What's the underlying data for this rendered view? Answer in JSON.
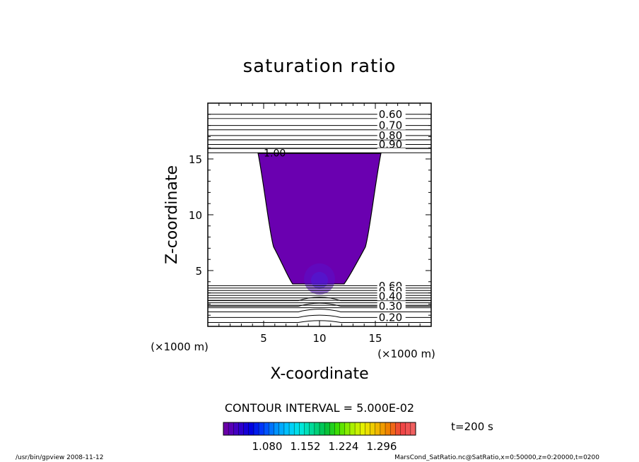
{
  "chart_data": {
    "type": "contour",
    "title": "saturation ratio",
    "xlabel": "X-coordinate",
    "ylabel": "Z-coordinate",
    "x_unit": "(×1000 m)",
    "z_unit": "(×1000 m)",
    "xlim": [
      0,
      20
    ],
    "ylim": [
      0,
      20
    ],
    "x_ticks": [
      5,
      10,
      15
    ],
    "y_ticks": [
      5,
      10,
      15
    ],
    "contour_interval_text": "CONTOUR INTERVAL = 5.000E-02",
    "time_text": "t=200 s",
    "upper_contours": [
      {
        "label": "0.60",
        "z": 19.0
      },
      {
        "label": "0.70",
        "z": 18.0
      },
      {
        "label": "0.80",
        "z": 17.1
      },
      {
        "label": "0.90",
        "z": 16.3
      },
      {
        "label": "1.00",
        "z": 15.55
      }
    ],
    "lower_contours": [
      {
        "label": "0.60",
        "z": 3.6
      },
      {
        "label": "0.50",
        "z": 3.15
      },
      {
        "label": "0.40",
        "z": 2.7
      },
      {
        "label": "0.30",
        "z": 1.8
      },
      {
        "label": "0.20",
        "z": 0.8
      }
    ],
    "supersaturated_region": {
      "level": "1.00",
      "top_z": 15.5,
      "bottom_z": 3.8,
      "top_x": [
        4.5,
        15.5
      ],
      "bottom_x": [
        7.6,
        12.2
      ],
      "max_center": {
        "x": 10,
        "z": 4.5
      }
    },
    "colorbar": {
      "tick_labels": [
        "1.080",
        "1.152",
        "1.224",
        "1.296"
      ],
      "colors": [
        "#6a00a8",
        "#3a00c8",
        "#0000e0",
        "#0040ff",
        "#0090ff",
        "#00c8ff",
        "#00e8e0",
        "#00d890",
        "#00c040",
        "#40e000",
        "#a0f000",
        "#e8f000",
        "#f0c000",
        "#f08000",
        "#f04040",
        "#f06060"
      ]
    }
  },
  "footer": {
    "left": "/usr/bin/gpview   2008-11-12",
    "right": "MarsCond_SatRatio.nc@SatRatio,x=0:50000,z=0:20000,t=0200"
  }
}
